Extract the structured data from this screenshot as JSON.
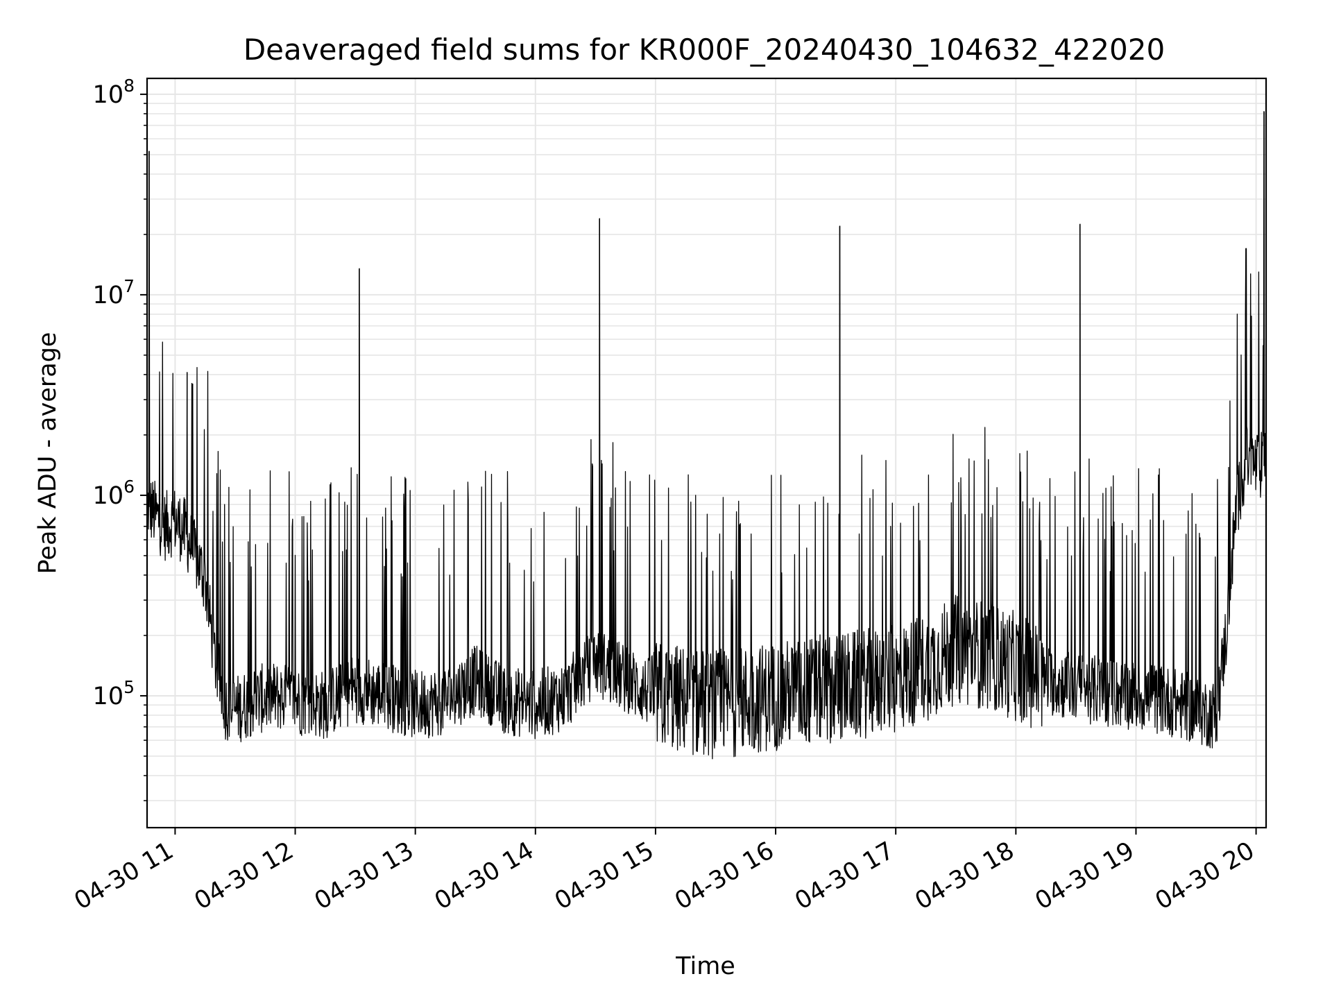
{
  "chart_data": {
    "type": "line",
    "title": "Deaveraged field sums for KR000F_20240430_104632_422020",
    "xlabel": "Time",
    "ylabel": "Peak ADU - average",
    "yscale": "log",
    "ylim": [
      22000,
      120000000
    ],
    "xlim": [
      "2024-04-30 10:46",
      "2024-04-30 20:05"
    ],
    "grid": true,
    "line_color": "#000000",
    "x_tick_labels": [
      "04-30 11",
      "04-30 12",
      "04-30 13",
      "04-30 14",
      "04-30 15",
      "04-30 16",
      "04-30 17",
      "04-30 18",
      "04-30 19",
      "04-30 20"
    ],
    "x_tick_values": [
      "2024-04-30 11:00",
      "2024-04-30 12:00",
      "2024-04-30 13:00",
      "2024-04-30 14:00",
      "2024-04-30 15:00",
      "2024-04-30 16:00",
      "2024-04-30 17:00",
      "2024-04-30 18:00",
      "2024-04-30 19:00",
      "2024-04-30 20:00"
    ],
    "y_ticks": [
      {
        "value": 100000,
        "base": "10",
        "exp": "5"
      },
      {
        "value": 1000000,
        "base": "10",
        "exp": "6"
      },
      {
        "value": 10000000,
        "base": "10",
        "exp": "7"
      },
      {
        "value": 100000000,
        "base": "10",
        "exp": "8"
      }
    ],
    "series": [
      {
        "x": [
          "2024-04-30 10:46",
          "2024-04-30 10:50",
          "2024-04-30 10:55",
          "2024-04-30 11:00",
          "2024-04-30 11:05",
          "2024-04-30 11:10",
          "2024-04-30 11:15",
          "2024-04-30 11:20",
          "2024-04-30 11:25",
          "2024-04-30 11:30",
          "2024-04-30 11:40",
          "2024-04-30 11:50",
          "2024-04-30 12:00",
          "2024-04-30 12:15",
          "2024-04-30 12:30",
          "2024-04-30 12:45",
          "2024-04-30 13:00",
          "2024-04-30 13:15",
          "2024-04-30 13:30",
          "2024-04-30 13:45",
          "2024-04-30 14:00",
          "2024-04-30 14:15",
          "2024-04-30 14:30",
          "2024-04-30 14:45",
          "2024-04-30 15:00",
          "2024-04-30 15:15",
          "2024-04-30 15:30",
          "2024-04-30 15:45",
          "2024-04-30 16:00",
          "2024-04-30 16:15",
          "2024-04-30 16:30",
          "2024-04-30 16:45",
          "2024-04-30 17:00",
          "2024-04-30 17:15",
          "2024-04-30 17:30",
          "2024-04-30 17:45",
          "2024-04-30 18:00",
          "2024-04-30 18:15",
          "2024-04-30 18:30",
          "2024-04-30 18:45",
          "2024-04-30 19:00",
          "2024-04-30 19:15",
          "2024-04-30 19:30",
          "2024-04-30 19:40",
          "2024-04-30 19:45",
          "2024-04-30 19:50",
          "2024-04-30 19:55",
          "2024-04-30 20:00",
          "2024-04-30 20:05"
        ],
        "y": [
          900000,
          800000,
          700000,
          750000,
          650000,
          500000,
          380000,
          150000,
          90000,
          85000,
          95000,
          100000,
          95000,
          90000,
          110000,
          100000,
          90000,
          95000,
          120000,
          95000,
          90000,
          100000,
          150000,
          120000,
          100000,
          95000,
          90000,
          95000,
          100000,
          105000,
          110000,
          115000,
          120000,
          140000,
          170000,
          160000,
          140000,
          120000,
          110000,
          105000,
          100000,
          95000,
          85000,
          80000,
          200000,
          850000,
          1500000,
          1400000,
          1400000
        ]
      }
    ],
    "spikes": [
      {
        "x": "2024-04-30 10:47",
        "y": 52000000
      },
      {
        "x": "2024-04-30 11:06",
        "y": 4100000
      },
      {
        "x": "2024-04-30 12:32",
        "y": 13500000
      },
      {
        "x": "2024-04-30 14:32",
        "y": 24000000
      },
      {
        "x": "2024-04-30 16:32",
        "y": 22000000
      },
      {
        "x": "2024-04-30 18:32",
        "y": 22500000
      },
      {
        "x": "2024-04-30 19:55",
        "y": 17000000
      },
      {
        "x": "2024-04-30 20:04",
        "y": 82000000
      }
    ]
  }
}
